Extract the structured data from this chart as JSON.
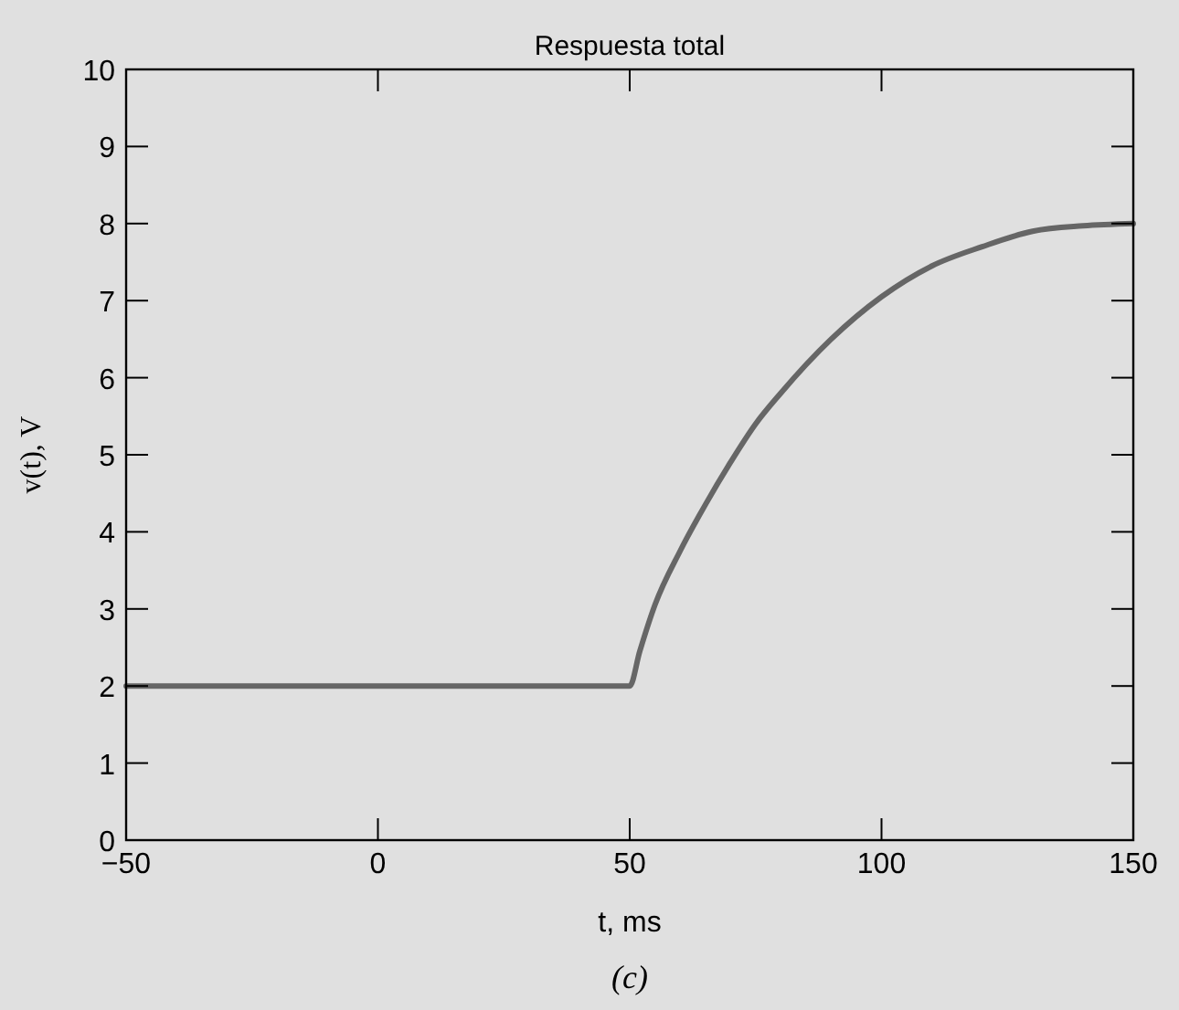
{
  "chart_data": {
    "type": "line",
    "title": "Respuesta total",
    "xlabel": "t, ms",
    "ylabel": "v(t), V",
    "annotations": [
      "(c)"
    ],
    "xlim": [
      -50,
      150
    ],
    "ylim": [
      0,
      10
    ],
    "xticks": [
      {
        "value": -50,
        "label": "−50"
      },
      0,
      50,
      100,
      150
    ],
    "yticks": [
      0,
      1,
      2,
      3,
      4,
      5,
      6,
      7,
      8,
      9,
      10
    ],
    "grid": false,
    "marker": "none",
    "line_style": "solid",
    "series": [
      {
        "color": "#666666",
        "x": [
          -50,
          0,
          50,
          52,
          55,
          60,
          65,
          70,
          75,
          80,
          90,
          100,
          110,
          120,
          130,
          140,
          150
        ],
        "values": [
          2,
          2,
          2,
          2.45,
          3.05,
          3.75,
          4.35,
          4.9,
          5.4,
          5.8,
          6.5,
          7.05,
          7.45,
          7.7,
          7.9,
          7.97,
          8.0
        ]
      }
    ]
  }
}
